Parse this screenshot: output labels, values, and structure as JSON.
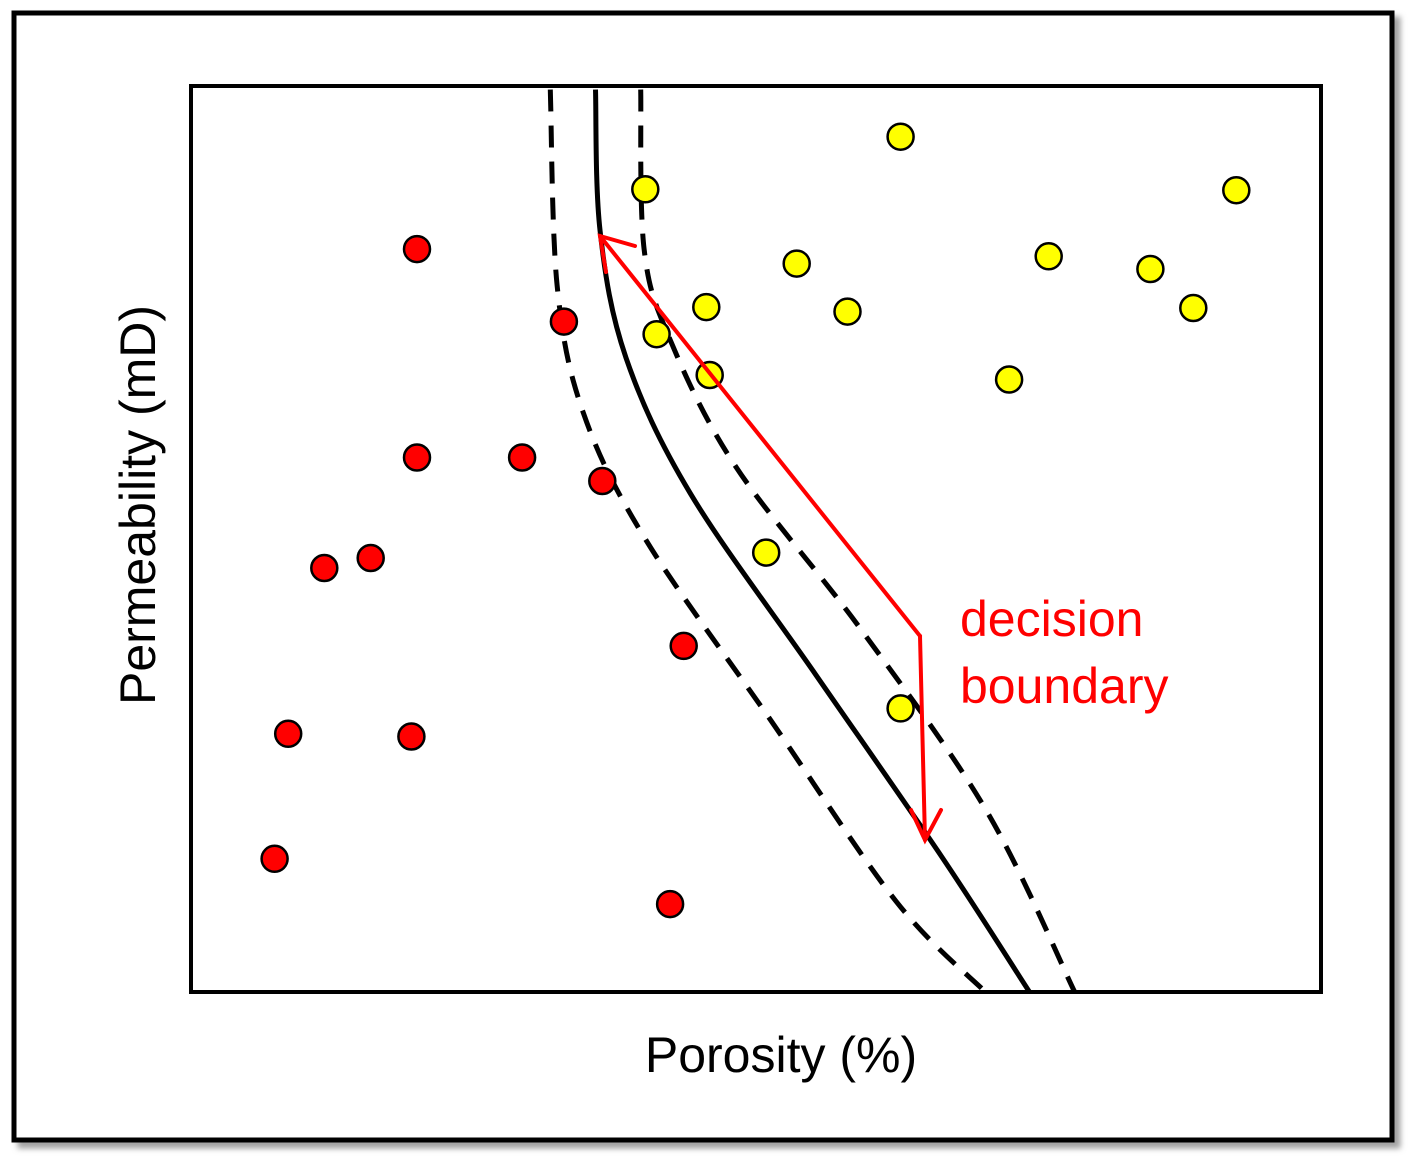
{
  "chart_data": {
    "type": "scatter",
    "title": "",
    "xlabel": "Porosity (%)",
    "ylabel": "Permeability (mD)",
    "xlim": [
      0,
      100
    ],
    "ylim": [
      0,
      100
    ],
    "grid": false,
    "series": [
      {
        "color": "#ff0000",
        "points": [
          {
            "x": 20,
            "y": 82
          },
          {
            "x": 33,
            "y": 74
          },
          {
            "x": 20,
            "y": 59
          },
          {
            "x": 29.3,
            "y": 59
          },
          {
            "x": 36.4,
            "y": 56.4
          },
          {
            "x": 11.8,
            "y": 46.8
          },
          {
            "x": 15.9,
            "y": 47.9
          },
          {
            "x": 43.6,
            "y": 38.2
          },
          {
            "x": 8.6,
            "y": 28.5
          },
          {
            "x": 19.5,
            "y": 28.2
          },
          {
            "x": 7.4,
            "y": 14.7
          },
          {
            "x": 42.4,
            "y": 9.7
          }
        ]
      },
      {
        "color": "#ffff00",
        "points": [
          {
            "x": 62.8,
            "y": 94.4
          },
          {
            "x": 40.2,
            "y": 88.6
          },
          {
            "x": 92.5,
            "y": 88.5
          },
          {
            "x": 53.6,
            "y": 80.4
          },
          {
            "x": 75.9,
            "y": 81.2
          },
          {
            "x": 84.9,
            "y": 79.8
          },
          {
            "x": 45.6,
            "y": 75.6
          },
          {
            "x": 58.1,
            "y": 75.1
          },
          {
            "x": 88.7,
            "y": 75.5
          },
          {
            "x": 41.2,
            "y": 72.6
          },
          {
            "x": 45.9,
            "y": 68.1
          },
          {
            "x": 72.4,
            "y": 67.6
          },
          {
            "x": 50.9,
            "y": 48.5
          },
          {
            "x": 62.8,
            "y": 31.3
          }
        ]
      }
    ],
    "decision_boundary": {
      "style": "solid",
      "color": "#000000",
      "points": [
        {
          "x": 35.8,
          "y": 99.6
        },
        {
          "x": 36.2,
          "y": 84
        },
        {
          "x": 38.5,
          "y": 70
        },
        {
          "x": 44.2,
          "y": 55
        },
        {
          "x": 55.3,
          "y": 35
        },
        {
          "x": 66.4,
          "y": 15
        },
        {
          "x": 74.2,
          "y": 0
        }
      ]
    },
    "margins": [
      {
        "style": "dashed",
        "color": "#000000",
        "points": [
          {
            "x": 31.8,
            "y": 99.6
          },
          {
            "x": 32.4,
            "y": 78
          },
          {
            "x": 34.7,
            "y": 64
          },
          {
            "x": 40.2,
            "y": 50
          },
          {
            "x": 51.3,
            "y": 30
          },
          {
            "x": 62.4,
            "y": 10
          },
          {
            "x": 70.3,
            "y": 0
          }
        ]
      },
      {
        "style": "dashed",
        "color": "#000000",
        "points": [
          {
            "x": 39.8,
            "y": 99.6
          },
          {
            "x": 40.1,
            "y": 82
          },
          {
            "x": 42.4,
            "y": 72
          },
          {
            "x": 48.2,
            "y": 58
          },
          {
            "x": 59.3,
            "y": 40
          },
          {
            "x": 70.4,
            "y": 20
          },
          {
            "x": 78.2,
            "y": 0
          }
        ]
      }
    ],
    "annotation": {
      "text_lines": [
        "decision",
        "boundary"
      ],
      "color": "#ff0000"
    }
  }
}
